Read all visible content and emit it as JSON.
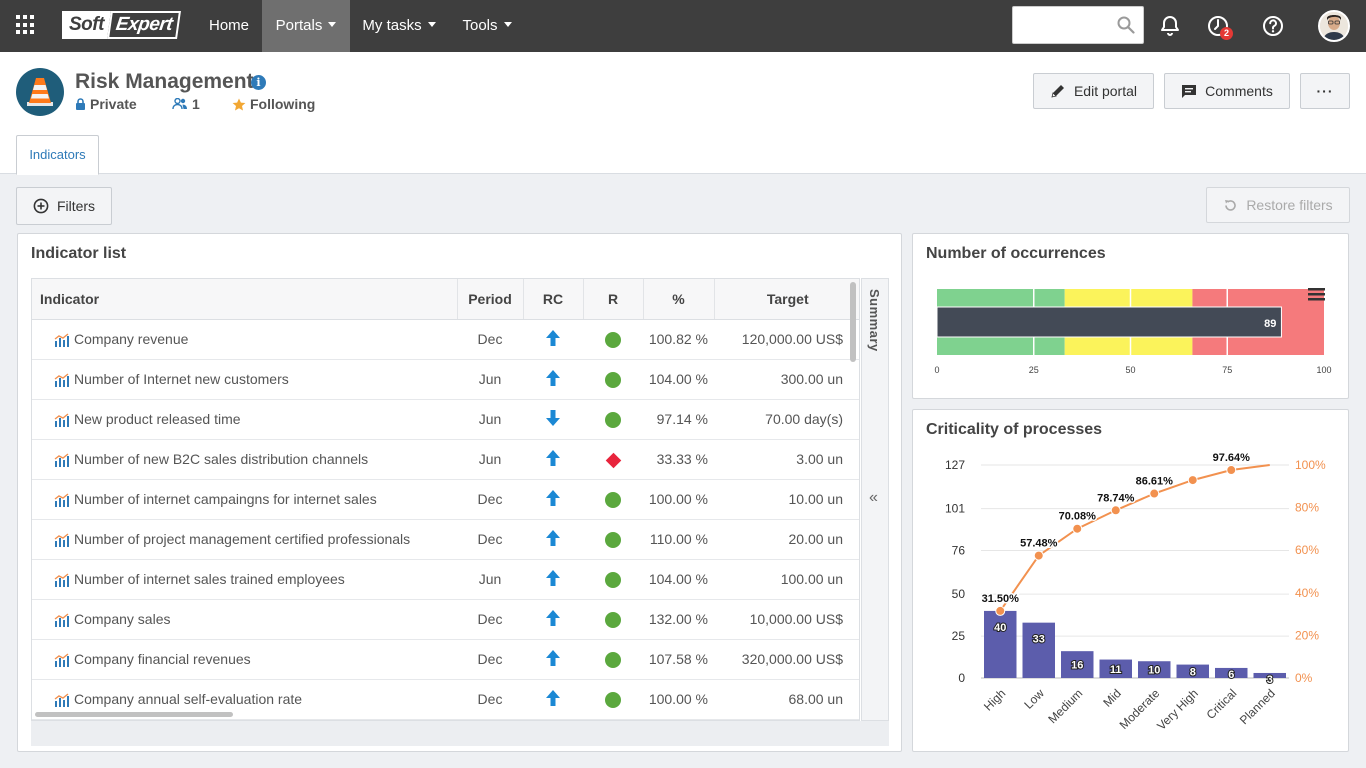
{
  "topnav": {
    "logo": {
      "part1": "Soft",
      "part2": "Expert"
    },
    "items": [
      {
        "label": "Home",
        "dropdown": false
      },
      {
        "label": "Portals",
        "dropdown": true,
        "active": true
      },
      {
        "label": "My tasks",
        "dropdown": true
      },
      {
        "label": "Tools",
        "dropdown": true
      }
    ],
    "search": {
      "value": "",
      "placeholder": ""
    },
    "icons": [
      "apps-grid-icon",
      "search-icon",
      "bell-icon",
      "workflow-icon",
      "help-icon",
      "avatar"
    ],
    "workflow_badge": "2"
  },
  "header": {
    "title": "Risk Management",
    "privacy": "Private",
    "members": "1",
    "following": "Following",
    "buttons": {
      "edit": "Edit portal",
      "comments": "Comments",
      "more": "···"
    },
    "tab": "Indicators"
  },
  "filters": {
    "filters_label": "Filters",
    "restore_label": "Restore filters"
  },
  "indicator_list": {
    "title": "Indicator list",
    "columns": [
      "Indicator",
      "Period",
      "RC",
      "R",
      "%",
      "Target"
    ],
    "summary_label": "Summary",
    "collapse_symbol": "«",
    "rows": [
      {
        "name": "Company revenue",
        "period": "Dec",
        "rc": "up",
        "r": "green",
        "pct": "100.82 %",
        "target": "120,000.00 US$"
      },
      {
        "name": "Number of Internet new customers",
        "period": "Jun",
        "rc": "up",
        "r": "green",
        "pct": "104.00 %",
        "target": "300.00 un"
      },
      {
        "name": "New product released time",
        "period": "Jun",
        "rc": "down",
        "r": "green",
        "pct": "97.14 %",
        "target": "70.00 day(s)"
      },
      {
        "name": "Number of new B2C sales distribution channels",
        "period": "Jun",
        "rc": "up",
        "r": "red",
        "pct": "33.33 %",
        "target": "3.00 un"
      },
      {
        "name": "Number of internet campaingns for internet sales",
        "period": "Dec",
        "rc": "up",
        "r": "green",
        "pct": "100.00 %",
        "target": "10.00 un"
      },
      {
        "name": "Number of project management certified professionals",
        "period": "Dec",
        "rc": "up",
        "r": "green",
        "pct": "110.00 %",
        "target": "20.00 un"
      },
      {
        "name": "Number of internet sales trained employees",
        "period": "Jun",
        "rc": "up",
        "r": "green",
        "pct": "104.00 %",
        "target": "100.00 un"
      },
      {
        "name": "Company sales",
        "period": "Dec",
        "rc": "up",
        "r": "green",
        "pct": "132.00 %",
        "target": "10,000.00 US$"
      },
      {
        "name": "Company financial revenues",
        "period": "Dec",
        "rc": "up",
        "r": "green",
        "pct": "107.58 %",
        "target": "320,000.00 US$"
      },
      {
        "name": "Company annual self-evaluation rate",
        "period": "Dec",
        "rc": "up",
        "r": "green",
        "pct": "100.00 %",
        "target": "68.00 un"
      }
    ]
  },
  "chart_data": [
    {
      "type": "bar",
      "title": "Number of occurrences",
      "subtype": "bullet",
      "value": 89,
      "value_label": "89",
      "xlim": [
        0,
        100
      ],
      "ticks": [
        "0",
        "25",
        "50",
        "75",
        "100"
      ],
      "bands": [
        {
          "from": 0,
          "to": 33,
          "color": "#7fd28f"
        },
        {
          "from": 33,
          "to": 66,
          "color": "#fbf35b"
        },
        {
          "from": 66,
          "to": 100,
          "color": "#f57a7c"
        }
      ],
      "bar_color": "#434a56",
      "menu_icon": "hamburger-menu-icon"
    },
    {
      "type": "bar",
      "subtype": "pareto",
      "title": "Criticality of processes",
      "categories": [
        "High",
        "Low",
        "Medium",
        "Mid",
        "Moderate",
        "Very High",
        "Critical",
        "Planned"
      ],
      "values": [
        40,
        33,
        16,
        11,
        10,
        8,
        6,
        3
      ],
      "cumulative_pct": [
        31.5,
        57.48,
        70.08,
        78.74,
        86.61,
        92.91,
        97.64,
        100
      ],
      "cumulative_labels": [
        "31.50%",
        "57.48%",
        "70.08%",
        "78.74%",
        "86.61%",
        "",
        "97.64%",
        ""
      ],
      "ylim": [
        0,
        127
      ],
      "y_ticks": [
        "0",
        "25",
        "50",
        "76",
        "101",
        "127"
      ],
      "y2_ticks": [
        "0%",
        "20%",
        "40%",
        "60%",
        "80%",
        "100%"
      ],
      "bar_color": "#5c5dac",
      "line_color": "#f2914f"
    }
  ]
}
